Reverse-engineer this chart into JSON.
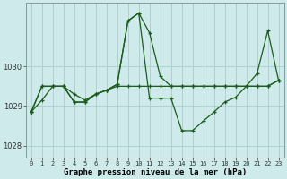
{
  "xlabel": "Graphe pression niveau de la mer (hPa)",
  "bg_color": "#ceeaea",
  "grid_color": "#a8d4d4",
  "line_color": "#1a5c1a",
  "ylim": [
    1027.7,
    1031.6
  ],
  "yticks": [
    1028,
    1029,
    1030
  ],
  "xlim": [
    -0.5,
    23.5
  ],
  "xticks": [
    0,
    1,
    2,
    3,
    4,
    5,
    6,
    7,
    8,
    9,
    10,
    11,
    12,
    13,
    14,
    15,
    16,
    17,
    18,
    19,
    20,
    21,
    22,
    23
  ],
  "s1": [
    1028.85,
    1029.15,
    1029.5,
    1029.5,
    1029.3,
    1029.15,
    1029.3,
    1029.4,
    1029.5,
    1029.5,
    1029.5,
    1029.5,
    1029.5,
    1029.5,
    1029.5,
    1029.5,
    1029.5,
    1029.5,
    1029.5,
    1029.5,
    1029.5,
    1029.5,
    1029.5,
    1029.65
  ],
  "s2": [
    1028.85,
    1029.5,
    1029.5,
    1029.5,
    1029.1,
    1029.1,
    1029.3,
    1029.4,
    1029.55,
    1031.15,
    1031.35,
    1030.85,
    1029.75,
    1029.5,
    1029.5,
    1029.5,
    1029.5,
    1029.5,
    1029.5,
    1029.5,
    1029.5,
    1029.5,
    1029.5,
    1029.65
  ],
  "s3": [
    1028.85,
    1029.5,
    1029.5,
    1029.5,
    1029.1,
    1029.1,
    1029.3,
    1029.4,
    1029.55,
    1031.15,
    1031.35,
    1029.2,
    1029.2,
    1029.2,
    1028.38,
    1028.38,
    1028.62,
    1028.85,
    1029.1,
    1029.22,
    1029.5,
    1029.82,
    1030.9,
    1029.65
  ]
}
